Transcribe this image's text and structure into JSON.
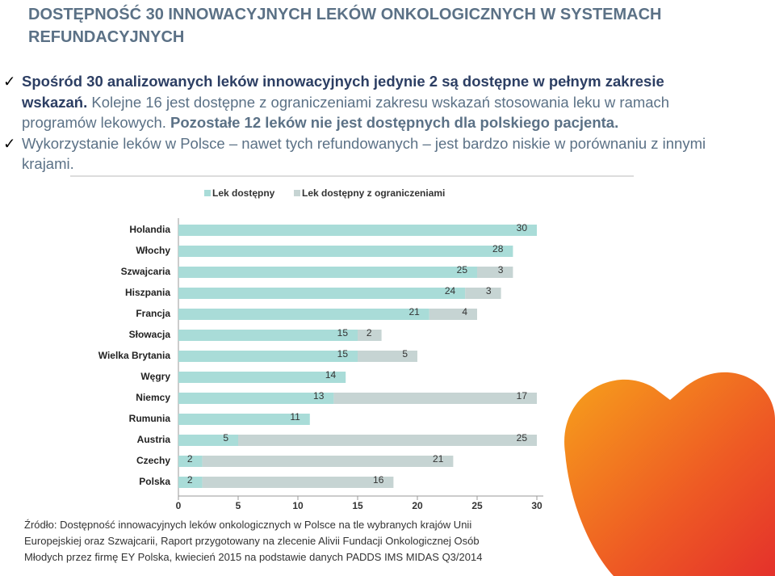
{
  "title": "DOSTĘPNOŚĆ 30 INNOWACYJNYCH LEKÓW ONKOLOGICZNYCH W SYSTEMACH REFUNDACYJNYCH",
  "bullets": [
    {
      "parts": [
        {
          "text": "Spośród 30 analizowanych leków innowacyjnych jedynie 2 są dostępne w pełnym zakresie wskazań.",
          "style": "strong"
        },
        {
          "text": " Kolejne 16 jest dostępne z ograniczeniami zakresu wskazań stosowania leku w ramach programów lekowych. ",
          "style": "normal"
        },
        {
          "text": "Pozostałe 12 leków nie jest dostępnych dla polskiego pacjenta.",
          "style": "bold"
        }
      ]
    },
    {
      "parts": [
        {
          "text": "Wykorzystanie leków w Polsce – nawet tych refundowanych – jest bardzo niskie w porównaniu z innymi krajami.",
          "style": "normal"
        }
      ]
    }
  ],
  "chart_data": {
    "type": "stacked-bar-horizontal",
    "categories": [
      "Holandia",
      "Włochy",
      "Szwajcaria",
      "Hiszpania",
      "Francja",
      "Słowacja",
      "Wielka Brytania",
      "Węgry",
      "Niemcy",
      "Rumunia",
      "Austria",
      "Czechy",
      "Polska"
    ],
    "series": [
      {
        "name": "Lek dostępny",
        "color": "#a9dcd8",
        "values": [
          30,
          28,
          25,
          24,
          21,
          15,
          15,
          14,
          13,
          11,
          5,
          2,
          2
        ]
      },
      {
        "name": "Lek dostępny z ograniczeniami",
        "color": "#c6d4d3",
        "values": [
          null,
          null,
          3,
          3,
          4,
          2,
          5,
          null,
          17,
          null,
          25,
          21,
          16
        ]
      }
    ],
    "xlim": [
      0,
      30
    ],
    "xticks": [
      0,
      5,
      10,
      15,
      20,
      25,
      30
    ],
    "legend": "top"
  },
  "source": [
    "Źródło: Dostępność innowacyjnych leków onkologicznych w Polsce na tle wybranych krajów Unii",
    "Europejskiej oraz Szwajcarii, Raport przygotowany na zlecenie Alivii Fundacji Onkologicznej Osób",
    "Młodych przez firmę EY Polska, kwiecień 2015 na podstawie danych PADDS IMS MIDAS Q3/2014"
  ]
}
